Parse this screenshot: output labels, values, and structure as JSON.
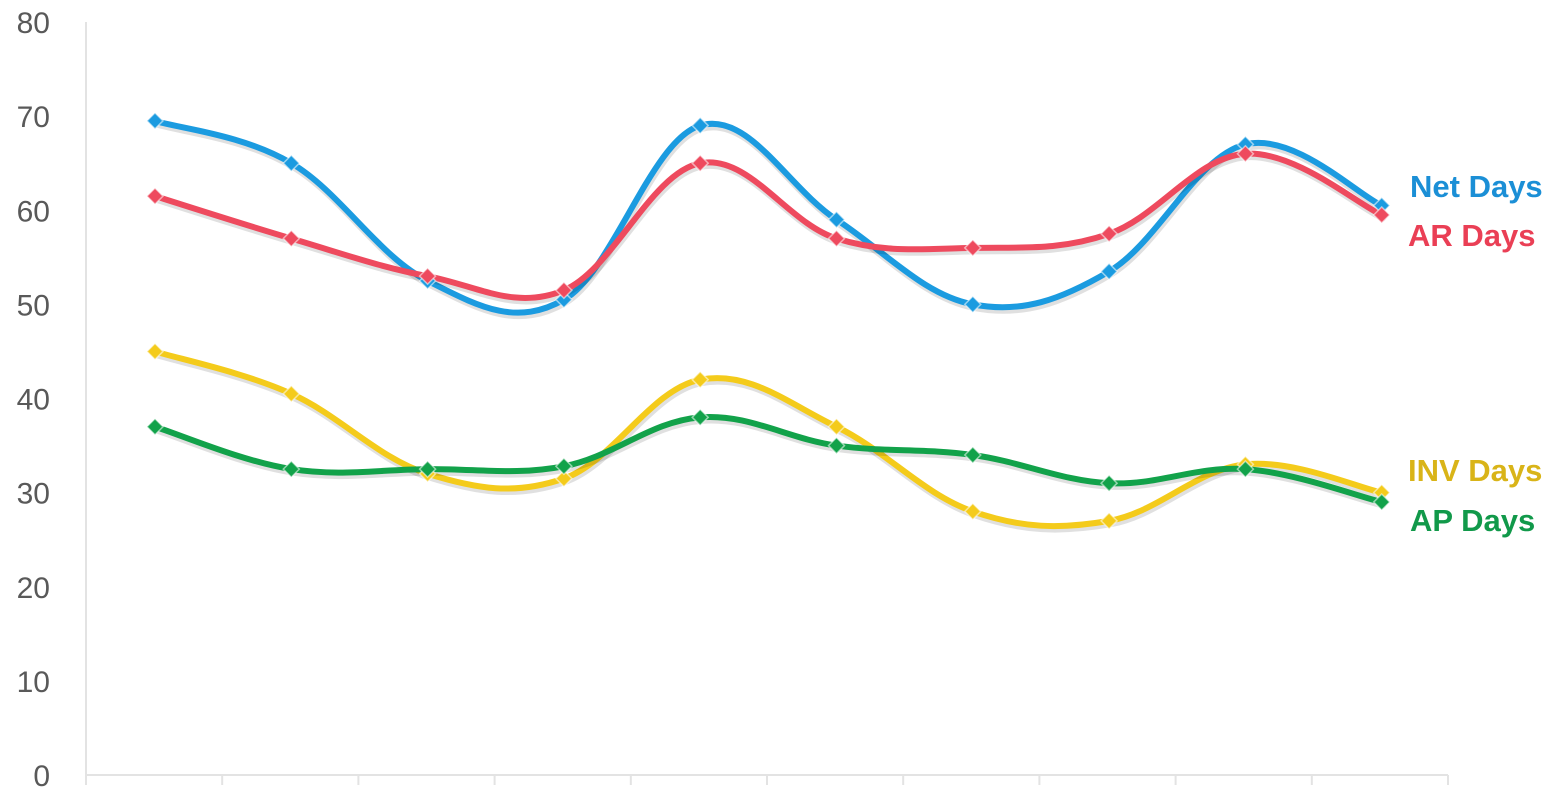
{
  "chart_data": {
    "type": "line",
    "title": "",
    "xlabel": "",
    "ylabel": "",
    "ylim": [
      0,
      80
    ],
    "yticks": [
      0,
      10,
      20,
      30,
      40,
      50,
      60,
      70,
      80
    ],
    "x": [
      1,
      2,
      3,
      4,
      5,
      6,
      7,
      8,
      9,
      10
    ],
    "grid": false,
    "legend": "direct labels at right end of each line",
    "series": [
      {
        "name": "Net Days",
        "color": "#1B9BE0",
        "values": [
          69.5,
          65,
          52.5,
          50.5,
          69,
          59,
          50,
          53.5,
          67,
          60.5
        ]
      },
      {
        "name": "AR Days",
        "color": "#EE4A5E",
        "values": [
          61.5,
          57,
          53,
          51.5,
          65,
          57,
          56,
          57.5,
          66,
          59.5
        ]
      },
      {
        "name": "INV Days",
        "color": "#F4CB1B",
        "values": [
          45,
          40.5,
          32,
          31.5,
          42,
          37,
          28,
          27,
          33,
          30
        ]
      },
      {
        "name": "AP Days",
        "color": "#12A24A",
        "values": [
          37,
          32.5,
          32.5,
          32.8,
          38,
          35,
          34,
          31,
          32.5,
          29
        ]
      }
    ]
  }
}
